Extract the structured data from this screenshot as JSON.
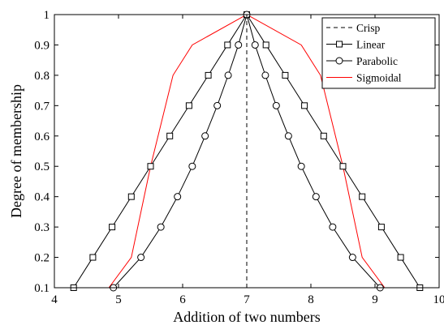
{
  "chart_data": {
    "type": "line",
    "title": "",
    "xlabel": "Addition of two numbers",
    "ylabel": "Degree of membership",
    "xlim": [
      4,
      10
    ],
    "ylim": [
      0.1,
      1
    ],
    "xticks": [
      "4",
      "5",
      "6",
      "7",
      "8",
      "9",
      "10"
    ],
    "yticks": [
      "0.1",
      "0.2",
      "0.3",
      "0.4",
      "0.5",
      "0.6",
      "0.7",
      "0.8",
      "0.9",
      "1"
    ],
    "grid": false,
    "legend_position": "top-right",
    "series": [
      {
        "name": "Crisp",
        "style": "dashed",
        "marker": "none",
        "color": "#000000",
        "x": [
          7,
          7
        ],
        "y": [
          0.1,
          1.0
        ]
      },
      {
        "name": "Linear",
        "style": "solid",
        "marker": "square",
        "color": "#000000",
        "x": [
          4.3,
          4.6,
          4.9,
          5.2,
          5.5,
          5.8,
          6.1,
          6.4,
          6.7,
          7.0,
          7.3,
          7.6,
          7.9,
          8.2,
          8.5,
          8.8,
          9.1,
          9.4,
          9.7
        ],
        "y": [
          0.1,
          0.2,
          0.3,
          0.4,
          0.5,
          0.6,
          0.7,
          0.8,
          0.9,
          1.0,
          0.9,
          0.8,
          0.7,
          0.6,
          0.5,
          0.4,
          0.3,
          0.2,
          0.1
        ]
      },
      {
        "name": "Parabolic",
        "style": "solid",
        "marker": "circle",
        "color": "#000000",
        "x": [
          4.92,
          5.35,
          5.66,
          5.92,
          6.15,
          6.35,
          6.54,
          6.71,
          6.87,
          7.0,
          7.13,
          7.29,
          7.46,
          7.65,
          7.85,
          8.08,
          8.34,
          8.65,
          9.08
        ],
        "y": [
          0.1,
          0.2,
          0.3,
          0.4,
          0.5,
          0.6,
          0.7,
          0.8,
          0.9,
          1.0,
          0.9,
          0.8,
          0.7,
          0.6,
          0.5,
          0.4,
          0.3,
          0.2,
          0.1
        ]
      },
      {
        "name": "Sigmoidal",
        "style": "solid",
        "marker": "none",
        "color": "#ff0000",
        "x": [
          4.85,
          5.2,
          5.5,
          5.85,
          6.15,
          7.0,
          7.85,
          8.15,
          8.5,
          8.8,
          9.15
        ],
        "y": [
          0.1,
          0.2,
          0.5,
          0.8,
          0.9,
          1.0,
          0.9,
          0.8,
          0.5,
          0.2,
          0.1
        ]
      }
    ]
  }
}
